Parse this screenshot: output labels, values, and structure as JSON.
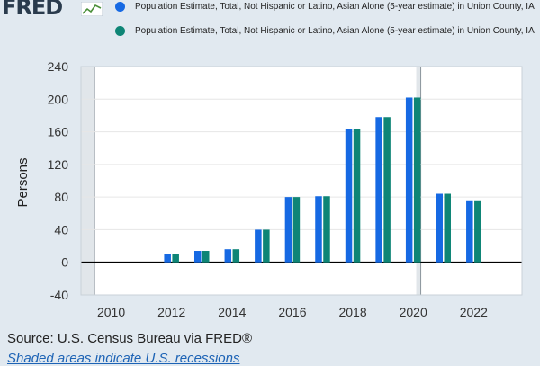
{
  "brand": {
    "logo_text": "FRED"
  },
  "legend": [
    {
      "label": "Population Estimate, Total, Not Hispanic or Latino, Asian Alone (5-year estimate) in Union County, IA",
      "color": "#1669e3"
    },
    {
      "label": "Population Estimate, Total, Not Hispanic or Latino, Asian Alone (5-year estimate) in Union County, IA",
      "color": "#0e8576"
    }
  ],
  "footer": {
    "source": "Source: U.S. Census Bureau via FRED®",
    "note": "Shaded areas indicate U.S. recessions"
  },
  "chart_data": {
    "type": "bar",
    "ylabel": "Persons",
    "ylim": [
      -40,
      240
    ],
    "yticks": [
      -40,
      0,
      40,
      80,
      120,
      160,
      200,
      240
    ],
    "xlim": [
      2009.0,
      2023.6
    ],
    "xticks": [
      2010,
      2012,
      2014,
      2016,
      2018,
      2020,
      2022
    ],
    "recessions": [
      [
        2009.0,
        2009.45
      ],
      [
        2020.1,
        2020.25
      ]
    ],
    "categories": [
      2012,
      2013,
      2014,
      2015,
      2016,
      2017,
      2018,
      2019,
      2020,
      2021,
      2022
    ],
    "series": [
      {
        "color": "#1669e3",
        "values": [
          10,
          14,
          16,
          40,
          80,
          81,
          163,
          178,
          202,
          84,
          76
        ]
      },
      {
        "color": "#0e8576",
        "values": [
          10,
          14,
          16,
          40,
          80,
          81,
          163,
          178,
          202,
          84,
          76
        ]
      }
    ],
    "grid": true,
    "legend_position": "top"
  }
}
